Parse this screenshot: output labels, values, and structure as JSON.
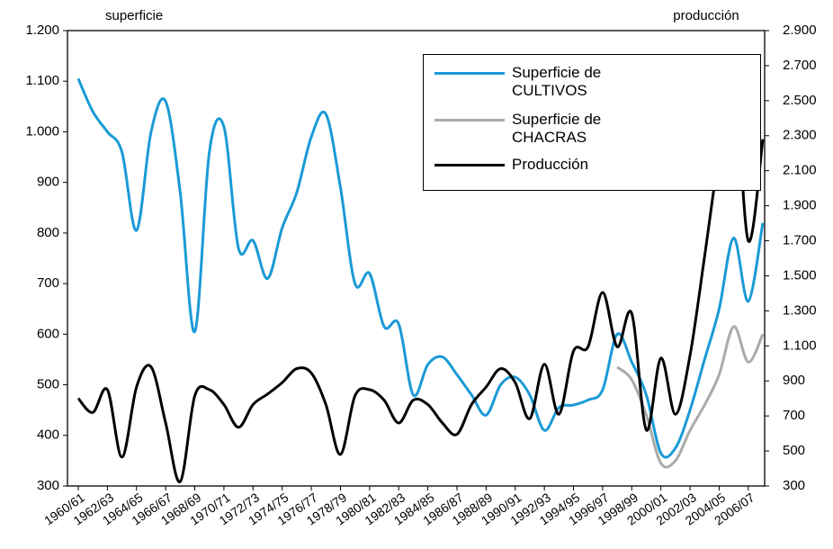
{
  "chart_data": {
    "type": "line",
    "axis_labels": {
      "y": "superficie",
      "y2": "producción"
    },
    "categories": [
      "1960/61",
      null,
      "1962/63",
      null,
      "1964/65",
      null,
      "1966/67",
      null,
      "1968/69",
      null,
      "1970/71",
      null,
      "1972/73",
      null,
      "1974/75",
      null,
      "1976/77",
      null,
      "1978/79",
      null,
      "1980/81",
      null,
      "1982/83",
      null,
      "1984/85",
      null,
      "1986/87",
      null,
      "1988/89",
      null,
      "1990/91",
      null,
      "1992/93",
      null,
      "1994/95",
      null,
      "1996/97",
      null,
      "1998/99",
      null,
      "2000/01",
      null,
      "2002/03",
      null,
      "2004/05",
      null,
      "2006/07",
      null
    ],
    "series": [
      {
        "name": "Superficie de CULTIVOS",
        "color": "#1a9ad6",
        "values": [
          1105,
          1040,
          1000,
          960,
          805,
          1000,
          1060,
          880,
          605,
          960,
          1010,
          770,
          785,
          710,
          810,
          880,
          990,
          1035,
          890,
          700,
          720,
          615,
          620,
          480,
          540,
          555,
          520,
          480,
          440,
          500,
          515,
          480,
          410,
          455,
          460,
          470,
          490,
          600,
          545,
          480,
          365,
          375,
          450,
          550,
          650,
          790,
          665,
          820
        ]
      },
      {
        "name": "Superficie de CHACRAS",
        "color": "#aaaaaa",
        "values": [
          null,
          null,
          null,
          null,
          null,
          null,
          null,
          null,
          null,
          null,
          null,
          null,
          null,
          null,
          null,
          null,
          null,
          null,
          null,
          null,
          null,
          null,
          null,
          null,
          null,
          null,
          null,
          null,
          null,
          null,
          null,
          null,
          null,
          null,
          null,
          null,
          null,
          535,
          510,
          440,
          345,
          350,
          410,
          460,
          520,
          615,
          545,
          600
        ]
      },
      {
        "name": "Producción",
        "color": "#000000",
        "axis": "y2",
        "values": [
          800,
          720,
          850,
          465,
          865,
          980,
          660,
          325,
          815,
          850,
          765,
          635,
          765,
          825,
          890,
          970,
          945,
          765,
          480,
          815,
          850,
          790,
          660,
          790,
          765,
          660,
          595,
          765,
          865,
          970,
          890,
          685,
          995,
          710,
          1070,
          1095,
          1405,
          1095,
          1285,
          620,
          1030,
          710,
          1045,
          1610,
          2200,
          2650,
          1700,
          2280
        ]
      }
    ],
    "ylim": [
      300,
      1200
    ],
    "yticks": [
      300,
      400,
      500,
      600,
      700,
      800,
      900,
      {
        "value": 1000,
        "label": "1.000"
      },
      {
        "value": 1100,
        "label": "1.100"
      },
      {
        "value": 1200,
        "label": "1.200"
      }
    ],
    "y2lim": [
      300,
      2900
    ],
    "y2ticks": [
      300,
      500,
      700,
      900,
      {
        "value": 1100,
        "label": "1.100"
      },
      {
        "value": 1300,
        "label": "1.300"
      },
      {
        "value": 1500,
        "label": "1.500"
      },
      {
        "value": 1700,
        "label": "1.700"
      },
      {
        "value": 1900,
        "label": "1.900"
      },
      {
        "value": 2100,
        "label": "2.100"
      },
      {
        "value": 2300,
        "label": "2.300"
      },
      {
        "value": 2500,
        "label": "2.500"
      },
      {
        "value": 2700,
        "label": "2.700"
      },
      {
        "value": 2900,
        "label": "2.900"
      }
    ],
    "legend": "top-right"
  }
}
